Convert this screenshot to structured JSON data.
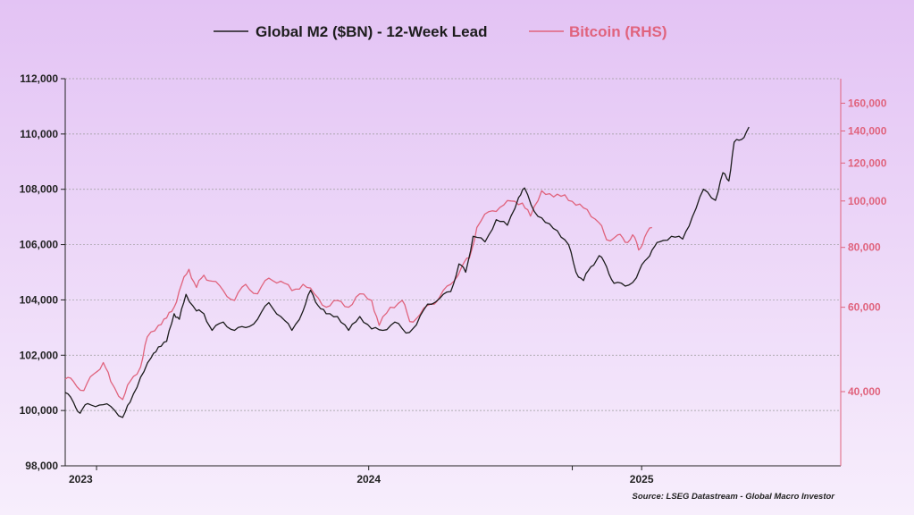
{
  "colors": {
    "m2_line": "#1c1c1c",
    "btc_line": "#e0637d",
    "btc_axis": "#e0637d",
    "grid": "#9a9a9a"
  },
  "chart_data": {
    "type": "line",
    "legend_position": "top-center",
    "grid": true,
    "x_tick_labels": [
      "2023",
      "2024",
      "2025"
    ],
    "left_axis": {
      "range": [
        98000,
        112000
      ],
      "ticks": [
        98000,
        100000,
        102000,
        104000,
        106000,
        108000,
        110000,
        112000
      ],
      "tick_labels": [
        "98,000",
        "100,000",
        "102,000",
        "104,000",
        "106,000",
        "108,000",
        "110,000",
        "112,000"
      ]
    },
    "right_axis": {
      "scale": "log",
      "range": [
        28000,
        180000
      ],
      "ticks": [
        40000,
        60000,
        80000,
        100000,
        120000,
        140000,
        160000
      ],
      "tick_labels": [
        "40,000",
        "60,000",
        "80,000",
        "100,000",
        "120,000",
        "140,000",
        "160,000"
      ]
    },
    "x_range": [
      "2022-11-20",
      "2025-09-25"
    ],
    "x_ticks": [
      "2023-01-01",
      "2024-01-01",
      "2024-09-30",
      "2025-01-01"
    ],
    "series": [
      {
        "name": "Global M2 ($BN) - 12-Week Lead",
        "axis": "left",
        "points": [
          [
            "2022-11-20",
            100650
          ],
          [
            "2022-12-01",
            100300
          ],
          [
            "2022-12-10",
            99900
          ],
          [
            "2022-12-20",
            100250
          ],
          [
            "2023-01-05",
            100200
          ],
          [
            "2023-01-20",
            100150
          ],
          [
            "2023-02-05",
            99750
          ],
          [
            "2023-02-15",
            100300
          ],
          [
            "2023-03-01",
            101200
          ],
          [
            "2023-03-15",
            101900
          ],
          [
            "2023-03-25",
            102300
          ],
          [
            "2023-04-05",
            102500
          ],
          [
            "2023-04-15",
            103500
          ],
          [
            "2023-04-22",
            103300
          ],
          [
            "2023-05-01",
            104200
          ],
          [
            "2023-05-15",
            103600
          ],
          [
            "2023-05-25",
            103500
          ],
          [
            "2023-06-05",
            102900
          ],
          [
            "2023-06-20",
            103200
          ],
          [
            "2023-07-05",
            102900
          ],
          [
            "2023-07-20",
            103000
          ],
          [
            "2023-08-05",
            103300
          ],
          [
            "2023-08-20",
            103900
          ],
          [
            "2023-09-05",
            103400
          ],
          [
            "2023-09-20",
            102900
          ],
          [
            "2023-10-05",
            103600
          ],
          [
            "2023-10-15",
            104350
          ],
          [
            "2023-10-25",
            103800
          ],
          [
            "2023-11-05",
            103500
          ],
          [
            "2023-11-20",
            103400
          ],
          [
            "2023-12-05",
            102900
          ],
          [
            "2023-12-20",
            103400
          ],
          [
            "2024-01-05",
            102950
          ],
          [
            "2024-01-20",
            102900
          ],
          [
            "2024-02-05",
            103200
          ],
          [
            "2024-02-20",
            102800
          ],
          [
            "2024-03-05",
            103100
          ],
          [
            "2024-03-20",
            103850
          ],
          [
            "2024-04-05",
            104050
          ],
          [
            "2024-04-20",
            104300
          ],
          [
            "2024-05-01",
            105300
          ],
          [
            "2024-05-10",
            105000
          ],
          [
            "2024-05-20",
            106300
          ],
          [
            "2024-06-05",
            106100
          ],
          [
            "2024-06-20",
            106900
          ],
          [
            "2024-07-05",
            106700
          ],
          [
            "2024-07-20",
            107700
          ],
          [
            "2024-07-28",
            108050
          ],
          [
            "2024-08-10",
            107200
          ],
          [
            "2024-08-25",
            106800
          ],
          [
            "2024-09-10",
            106500
          ],
          [
            "2024-09-25",
            106000
          ],
          [
            "2024-10-05",
            105000
          ],
          [
            "2024-10-15",
            104700
          ],
          [
            "2024-10-25",
            105200
          ],
          [
            "2024-11-05",
            105600
          ],
          [
            "2024-11-15",
            105200
          ],
          [
            "2024-11-25",
            104600
          ],
          [
            "2024-12-10",
            104500
          ],
          [
            "2024-12-25",
            104800
          ],
          [
            "2025-01-05",
            105400
          ],
          [
            "2025-01-15",
            105800
          ],
          [
            "2025-01-25",
            106100
          ],
          [
            "2025-02-10",
            106300
          ],
          [
            "2025-02-25",
            106200
          ],
          [
            "2025-03-10",
            107000
          ],
          [
            "2025-03-25",
            108000
          ],
          [
            "2025-04-10",
            107600
          ],
          [
            "2025-04-20",
            108600
          ],
          [
            "2025-04-28",
            108300
          ],
          [
            "2025-05-05",
            109700
          ],
          [
            "2025-05-15",
            109800
          ],
          [
            "2025-05-25",
            110250
          ]
        ]
      },
      {
        "name": "Bitcoin (RHS)",
        "axis": "right",
        "points": [
          [
            "2022-11-20",
            42500
          ],
          [
            "2022-12-01",
            42000
          ],
          [
            "2022-12-15",
            40200
          ],
          [
            "2022-12-28",
            43500
          ],
          [
            "2023-01-10",
            46000
          ],
          [
            "2023-01-20",
            42000
          ],
          [
            "2023-02-05",
            38500
          ],
          [
            "2023-02-15",
            42000
          ],
          [
            "2023-03-01",
            45000
          ],
          [
            "2023-03-10",
            52000
          ],
          [
            "2023-03-25",
            55000
          ],
          [
            "2023-04-05",
            57000
          ],
          [
            "2023-04-15",
            60000
          ],
          [
            "2023-04-25",
            67000
          ],
          [
            "2023-05-05",
            72000
          ],
          [
            "2023-05-15",
            66000
          ],
          [
            "2023-05-25",
            70000
          ],
          [
            "2023-06-05",
            68000
          ],
          [
            "2023-06-20",
            65000
          ],
          [
            "2023-07-05",
            62000
          ],
          [
            "2023-07-20",
            67000
          ],
          [
            "2023-08-05",
            64000
          ],
          [
            "2023-08-20",
            69000
          ],
          [
            "2023-09-05",
            68000
          ],
          [
            "2023-09-20",
            65000
          ],
          [
            "2023-10-05",
            67000
          ],
          [
            "2023-10-20",
            64000
          ],
          [
            "2023-11-05",
            60000
          ],
          [
            "2023-11-20",
            62000
          ],
          [
            "2023-12-05",
            60000
          ],
          [
            "2023-12-20",
            64000
          ],
          [
            "2024-01-05",
            62000
          ],
          [
            "2024-01-15",
            55000
          ],
          [
            "2024-01-30",
            60000
          ],
          [
            "2024-02-15",
            62000
          ],
          [
            "2024-02-25",
            56000
          ],
          [
            "2024-03-10",
            58000
          ],
          [
            "2024-03-25",
            61000
          ],
          [
            "2024-04-05",
            63000
          ],
          [
            "2024-04-20",
            67000
          ],
          [
            "2024-05-05",
            73000
          ],
          [
            "2024-05-15",
            76000
          ],
          [
            "2024-05-25",
            88000
          ],
          [
            "2024-06-10",
            95000
          ],
          [
            "2024-06-25",
            97000
          ],
          [
            "2024-07-10",
            100000
          ],
          [
            "2024-07-25",
            99000
          ],
          [
            "2024-08-05",
            93000
          ],
          [
            "2024-08-20",
            105000
          ],
          [
            "2024-09-05",
            102000
          ],
          [
            "2024-09-20",
            103000
          ],
          [
            "2024-10-05",
            98000
          ],
          [
            "2024-10-20",
            96000
          ],
          [
            "2024-11-05",
            90000
          ],
          [
            "2024-11-15",
            83000
          ],
          [
            "2024-11-30",
            85000
          ],
          [
            "2024-12-10",
            82000
          ],
          [
            "2024-12-20",
            85000
          ],
          [
            "2024-12-28",
            79000
          ],
          [
            "2025-01-05",
            84000
          ],
          [
            "2025-01-15",
            88000
          ]
        ]
      }
    ],
    "annotation": "Source: LSEG Datastream - Global Macro Investor"
  }
}
